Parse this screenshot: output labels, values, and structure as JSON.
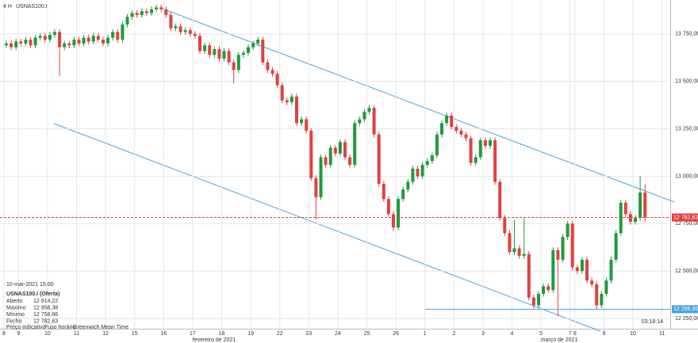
{
  "header": {
    "timeframe": "4 H",
    "symbol": "USNAS100.I"
  },
  "info_panel": {
    "datetime": "10-mar-2021 15:00",
    "instrument": "USNAS100.I (Oferta)",
    "rows": [
      [
        "Aberto",
        "12 914,22"
      ],
      [
        "Máximo",
        "12 958,38"
      ],
      [
        "Mínimo",
        "12 758,86"
      ],
      [
        "Fecho",
        "12 782,63"
      ]
    ],
    "footer": [
      "Preço indicativo",
      "Fuso horário",
      "Greenwich Mean Time"
    ]
  },
  "clock": "03:18:14",
  "chart_data": {
    "type": "candlestick",
    "up_color": "#1e9b3b",
    "down_color": "#e0413f",
    "months": [
      "fevereiro de 2021",
      "março de 2021"
    ],
    "categories": [
      "8",
      null,
      null,
      "9",
      null,
      null,
      null,
      null,
      null,
      "10",
      null,
      null,
      null,
      null,
      null,
      "11",
      null,
      null,
      null,
      null,
      null,
      "12",
      null,
      null,
      null,
      null,
      null,
      "15",
      null,
      null,
      null,
      null,
      null,
      "16",
      null,
      null,
      null,
      null,
      null,
      "17",
      null,
      null,
      null,
      null,
      null,
      "18",
      null,
      null,
      null,
      null,
      null,
      "19",
      null,
      null,
      null,
      null,
      null,
      "22",
      null,
      null,
      null,
      null,
      null,
      "23",
      null,
      null,
      null,
      null,
      null,
      "24",
      null,
      null,
      null,
      null,
      null,
      "25",
      null,
      null,
      null,
      null,
      null,
      "26",
      null,
      null,
      null,
      null,
      null,
      "1",
      null,
      null,
      null,
      null,
      null,
      "2",
      null,
      null,
      null,
      null,
      null,
      "3",
      null,
      null,
      null,
      null,
      null,
      "4",
      null,
      null,
      null,
      null,
      null,
      "5",
      null,
      null,
      null,
      null,
      null,
      "7",
      "8",
      null,
      null,
      null,
      null,
      null,
      "9",
      null,
      null,
      null,
      null,
      null,
      "10",
      null,
      null,
      null,
      null,
      null,
      "11"
    ],
    "open": [
      13690,
      13700,
      13680,
      13710,
      13700,
      13720,
      13690,
      13730,
      13740,
      13720,
      13745,
      13760,
      13680,
      13700,
      13690,
      13720,
      13700,
      13730,
      13710,
      13740,
      13720,
      13700,
      13730,
      13760,
      13720,
      13800,
      13840,
      13860,
      13850,
      13870,
      13860,
      13880,
      13890,
      13880,
      13850,
      13780,
      13790,
      13760,
      13770,
      13750,
      13740,
      13660,
      13690,
      13640,
      13670,
      13620,
      13660,
      13600,
      13560,
      13640,
      13650,
      13680,
      13700,
      13720,
      13600,
      13560,
      13540,
      13480,
      13400,
      13390,
      13420,
      13280,
      13300,
      13240,
      12990,
      12890,
      13100,
      13060,
      13150,
      13120,
      13180,
      13100,
      13060,
      13280,
      13300,
      13340,
      13360,
      13220,
      12960,
      12880,
      12800,
      12730,
      12880,
      12930,
      12970,
      13040,
      13000,
      13060,
      13080,
      13110,
      13220,
      13280,
      13320,
      13260,
      13240,
      13220,
      13200,
      13070,
      13100,
      13190,
      13160,
      13190,
      12970,
      12780,
      12700,
      12600,
      12620,
      12580,
      12590,
      12360,
      12320,
      12380,
      12420,
      12400,
      12610,
      12560,
      12680,
      12750,
      12520,
      12500,
      12560,
      12450,
      12430,
      12320,
      12380,
      12450,
      12560,
      12700,
      12860,
      12800,
      12760,
      12780,
      12914.22,
      null,
      null,
      null,
      null
    ],
    "high": [
      13715,
      13715,
      13725,
      13725,
      13735,
      13735,
      13745,
      13755,
      13755,
      13760,
      13775,
      13775,
      13715,
      13715,
      13735,
      13735,
      13745,
      13745,
      13755,
      13755,
      13735,
      13745,
      13775,
      13775,
      13815,
      13855,
      13875,
      13875,
      13885,
      13885,
      13895,
      13905,
      13905,
      13895,
      13865,
      13805,
      13805,
      13785,
      13785,
      13765,
      13755,
      13705,
      13705,
      13685,
      13685,
      13675,
      13675,
      13615,
      13655,
      13665,
      13695,
      13715,
      13735,
      13735,
      13615,
      13575,
      13555,
      13495,
      13415,
      13435,
      13435,
      13315,
      13315,
      13255,
      13005,
      13115,
      13115,
      13165,
      13165,
      13195,
      13195,
      13115,
      13295,
      13315,
      13355,
      13375,
      13375,
      13235,
      12975,
      12895,
      12815,
      12895,
      12945,
      12985,
      13055,
      13055,
      13075,
      13095,
      13125,
      13235,
      13295,
      13335,
      13335,
      13275,
      13255,
      13235,
      13215,
      13115,
      13205,
      13205,
      13205,
      13205,
      12985,
      12795,
      12715,
      12770,
      12635,
      12780,
      12605,
      12375,
      12395,
      12435,
      12435,
      12625,
      12625,
      12695,
      12765,
      12765,
      12535,
      12575,
      12575,
      12465,
      12445,
      12395,
      12465,
      12575,
      12715,
      12875,
      12875,
      12815,
      12795,
      13000,
      12958.38,
      null,
      null,
      null,
      null
    ],
    "low": [
      13675,
      13665,
      13665,
      13685,
      13685,
      13675,
      13675,
      13715,
      13705,
      13705,
      13730,
      13530,
      13665,
      13675,
      13675,
      13685,
      13685,
      13695,
      13695,
      13705,
      13685,
      13685,
      13715,
      13705,
      13705,
      13785,
      13825,
      13835,
      13835,
      13845,
      13845,
      13865,
      13865,
      13835,
      13765,
      13765,
      13745,
      13745,
      13735,
      13725,
      13645,
      13645,
      13625,
      13625,
      13605,
      13605,
      13585,
      13490,
      13545,
      13625,
      13635,
      13665,
      13685,
      13585,
      13545,
      13525,
      13465,
      13385,
      13375,
      13375,
      13265,
      13265,
      13225,
      12975,
      12770,
      12875,
      13045,
      13045,
      13105,
      13105,
      13085,
      13045,
      13045,
      13265,
      13285,
      13325,
      13205,
      12945,
      12865,
      12785,
      12710,
      12715,
      12865,
      12915,
      12955,
      12985,
      12985,
      13045,
      13065,
      13095,
      13205,
      13265,
      13245,
      13225,
      13205,
      13185,
      13055,
      13055,
      13085,
      13145,
      13145,
      12955,
      12765,
      12685,
      12585,
      12585,
      12565,
      12565,
      12345,
      12300,
      12305,
      12365,
      12385,
      12385,
      12262,
      12545,
      12665,
      12505,
      12485,
      12485,
      12435,
      12415,
      12300,
      12305,
      12365,
      12435,
      12545,
      12685,
      12785,
      12745,
      12745,
      12765,
      12758.86,
      null,
      null,
      null,
      null
    ],
    "close": [
      13700,
      13680,
      13710,
      13700,
      13720,
      13690,
      13730,
      13740,
      13720,
      13745,
      13760,
      13680,
      13700,
      13690,
      13720,
      13700,
      13730,
      13710,
      13740,
      13720,
      13700,
      13730,
      13760,
      13720,
      13800,
      13840,
      13860,
      13850,
      13870,
      13860,
      13880,
      13890,
      13880,
      13850,
      13780,
      13790,
      13760,
      13770,
      13750,
      13740,
      13660,
      13690,
      13640,
      13670,
      13620,
      13660,
      13600,
      13560,
      13640,
      13650,
      13680,
      13700,
      13720,
      13600,
      13560,
      13540,
      13480,
      13400,
      13390,
      13420,
      13280,
      13300,
      13240,
      12990,
      12890,
      13100,
      13060,
      13150,
      13120,
      13180,
      13100,
      13060,
      13280,
      13300,
      13340,
      13360,
      13220,
      12960,
      12880,
      12800,
      12730,
      12880,
      12930,
      12970,
      13040,
      13000,
      13060,
      13080,
      13110,
      13220,
      13280,
      13320,
      13260,
      13240,
      13220,
      13200,
      13070,
      13100,
      13190,
      13160,
      13190,
      12970,
      12780,
      12700,
      12600,
      12620,
      12580,
      12590,
      12360,
      12320,
      12380,
      12420,
      12400,
      12610,
      12560,
      12680,
      12750,
      12520,
      12500,
      12560,
      12450,
      12430,
      12320,
      12380,
      12450,
      12560,
      12700,
      12860,
      12800,
      12760,
      12780,
      12914.22,
      12782.63,
      null,
      null,
      null,
      null
    ],
    "ylim": [
      12196,
      13929
    ],
    "yticks": [
      {
        "value": 12250,
        "label": "12 250,00"
      },
      {
        "value": 12500,
        "label": "12 500,00"
      },
      {
        "value": 12750,
        "label": "12 750,00"
      },
      {
        "value": 13000,
        "label": "13 000,00"
      },
      {
        "value": 13250,
        "label": "13 250,00"
      },
      {
        "value": 13500,
        "label": "13 500,00"
      },
      {
        "value": 13750,
        "label": "13 750,00"
      }
    ],
    "grid": true,
    "price_line": {
      "value": 12782.63,
      "label": "12 782,63",
      "color": "#e0413f"
    },
    "level_line": {
      "value": 12298.95,
      "label": "12 298,95",
      "color": "#4aa3df"
    }
  }
}
